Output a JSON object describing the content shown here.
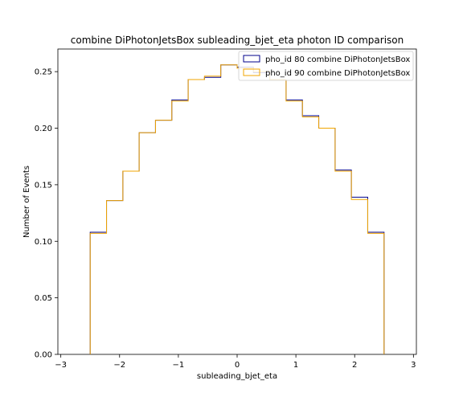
{
  "chart_data": {
    "type": "histogram",
    "title": "combine DiPhotonJetsBox subleading_bjet_eta photon ID comparison",
    "xlabel": "subleading_bjet_eta",
    "ylabel": "Number of Events",
    "xlim": [
      -3.05,
      3.05
    ],
    "ylim": [
      0,
      0.27
    ],
    "xticks": [
      -3,
      -2,
      -1,
      0,
      1,
      2,
      3
    ],
    "xtick_labels": [
      "−3",
      "−2",
      "−1",
      "0",
      "1",
      "2",
      "3"
    ],
    "yticks": [
      0.0,
      0.05,
      0.1,
      0.15,
      0.2,
      0.25
    ],
    "ytick_labels": [
      "0.00",
      "0.05",
      "0.10",
      "0.15",
      "0.20",
      "0.25"
    ],
    "legend_position": "top-right",
    "grid": false,
    "bin_edges": [
      -2.5,
      -2.222,
      -1.944,
      -1.667,
      -1.389,
      -1.111,
      -0.833,
      -0.556,
      -0.278,
      0.0,
      0.278,
      0.556,
      0.833,
      1.111,
      1.389,
      1.667,
      1.944,
      2.222,
      2.5
    ],
    "series": [
      {
        "name": "pho_id 80 combine DiPhotonJetsBox",
        "color": "#00008b",
        "values": [
          0.108,
          0.136,
          0.162,
          0.196,
          0.207,
          0.225,
          0.243,
          0.245,
          0.256,
          0.254,
          0.249,
          0.243,
          0.225,
          0.211,
          0.2,
          0.163,
          0.139,
          0.108
        ]
      },
      {
        "name": "pho_id 90 combine DiPhotonJetsBox",
        "color": "#f0a500",
        "values": [
          0.107,
          0.136,
          0.162,
          0.196,
          0.207,
          0.224,
          0.243,
          0.246,
          0.256,
          0.253,
          0.25,
          0.243,
          0.224,
          0.21,
          0.2,
          0.162,
          0.137,
          0.107
        ]
      }
    ]
  }
}
